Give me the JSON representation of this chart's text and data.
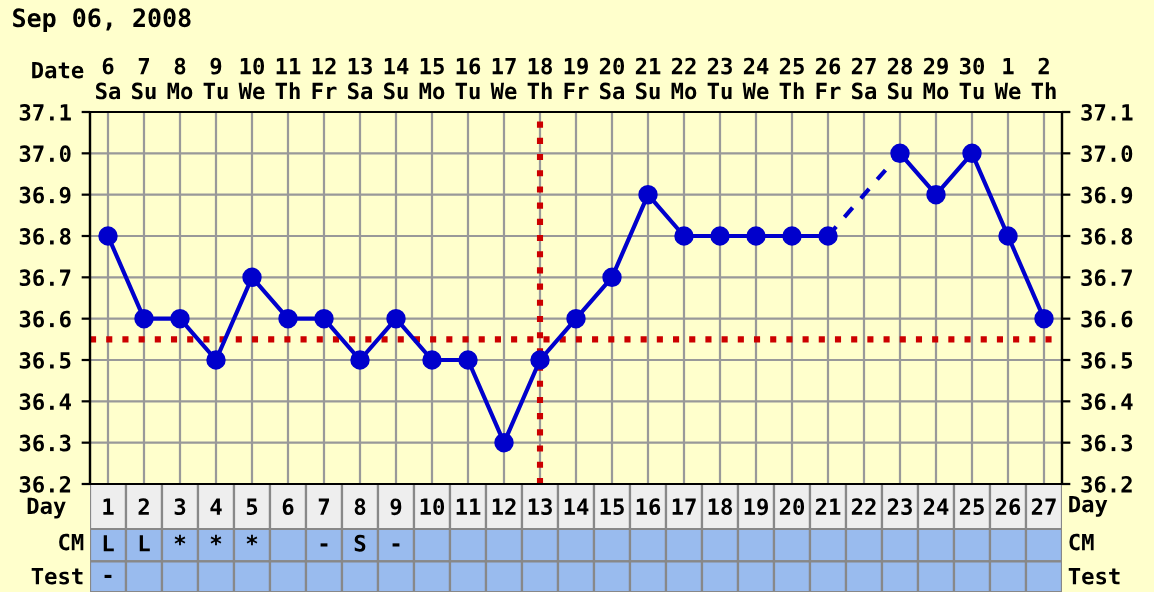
{
  "chart_data": {
    "type": "line",
    "title": "Sep 06, 2008",
    "xlabel": "Day",
    "x2label": "Date",
    "x": [
      1,
      2,
      3,
      4,
      5,
      6,
      7,
      8,
      9,
      10,
      11,
      12,
      13,
      14,
      15,
      16,
      17,
      18,
      19,
      20,
      21,
      22,
      23,
      24,
      25,
      26,
      27
    ],
    "series": [
      {
        "color": "#0000cc",
        "values": [
          36.8,
          36.6,
          36.6,
          36.5,
          36.7,
          36.6,
          36.6,
          36.5,
          36.6,
          36.5,
          36.5,
          36.3,
          36.5,
          36.6,
          36.7,
          36.9,
          36.8,
          36.8,
          36.8,
          36.8,
          36.8,
          null,
          37.0,
          36.9,
          37.0,
          36.8,
          36.6
        ]
      }
    ],
    "xlim": [
      0.5,
      27.5
    ],
    "xticks": [
      1,
      2,
      3,
      4,
      5,
      6,
      7,
      8,
      9,
      10,
      11,
      12,
      13,
      14,
      15,
      16,
      17,
      18,
      19,
      20,
      21,
      22,
      23,
      24,
      25,
      26,
      27
    ],
    "ylim": [
      36.2,
      37.1
    ],
    "yticks": [
      {
        "value": 36.2,
        "label": "36.2"
      },
      {
        "value": 36.3,
        "label": "36.3"
      },
      {
        "value": 36.4,
        "label": "36.4"
      },
      {
        "value": 36.5,
        "label": "36.5"
      },
      {
        "value": 36.6,
        "label": "36.6"
      },
      {
        "value": 36.7,
        "label": "36.7"
      },
      {
        "value": 36.8,
        "label": "36.8"
      },
      {
        "value": 36.9,
        "label": "36.9"
      },
      {
        "value": 37.0,
        "label": "37.0"
      },
      {
        "value": 37.1,
        "label": "37.1"
      }
    ],
    "y2lim": [
      36.2,
      37.1
    ],
    "y2ticks": [
      {
        "value": 36.2,
        "label": "36.2"
      },
      {
        "value": 36.3,
        "label": "36.3"
      },
      {
        "value": 36.4,
        "label": "36.4"
      },
      {
        "value": 36.5,
        "label": "36.5"
      },
      {
        "value": 36.6,
        "label": "36.6"
      },
      {
        "value": 36.7,
        "label": "36.7"
      },
      {
        "value": 36.8,
        "label": "36.8"
      },
      {
        "value": 36.9,
        "label": "36.9"
      },
      {
        "value": 37.0,
        "label": "37.0"
      },
      {
        "value": 37.1,
        "label": "37.1"
      }
    ],
    "ref_lines": [
      {
        "axis": "y",
        "value": 36.55,
        "color": "#cc0000",
        "line_style": "dotted"
      },
      {
        "axis": "x",
        "value": 13,
        "color": "#cc0000",
        "line_style": "dotted"
      }
    ],
    "annotations": [
      "6\nSa",
      "7\nSu",
      "8\nMo",
      "9\nTu",
      "10\nWe",
      "11\nTh",
      "12\nFr",
      "13\nSa",
      "14\nSu",
      "15\nMo",
      "16\nTu",
      "17\nWe",
      "18\nTh",
      "19\nFr",
      "20\nSa",
      "21\nSu",
      "22\nMo",
      "23\nTu",
      "24\nWe",
      "25\nTh",
      "26\nFr",
      "27\nSa",
      "28\nSu",
      "29\nMo",
      "30\nTu",
      "1\nWe",
      "2\nTh",
      "CM",
      "L",
      "L",
      "*",
      "*",
      "*",
      null,
      "-",
      "S",
      "-",
      null,
      null,
      null,
      null,
      null,
      null,
      null,
      null,
      null,
      null,
      null,
      null,
      null,
      null,
      null,
      null,
      null,
      null,
      "Test",
      "-",
      null,
      null,
      null,
      null,
      null,
      null,
      null,
      null,
      null,
      null,
      null,
      null,
      null,
      null,
      null,
      null,
      null,
      null,
      null,
      null,
      null,
      null,
      null,
      null,
      null,
      null
    ],
    "grid": true,
    "marker": "circle",
    "line_style": "solid"
  }
}
